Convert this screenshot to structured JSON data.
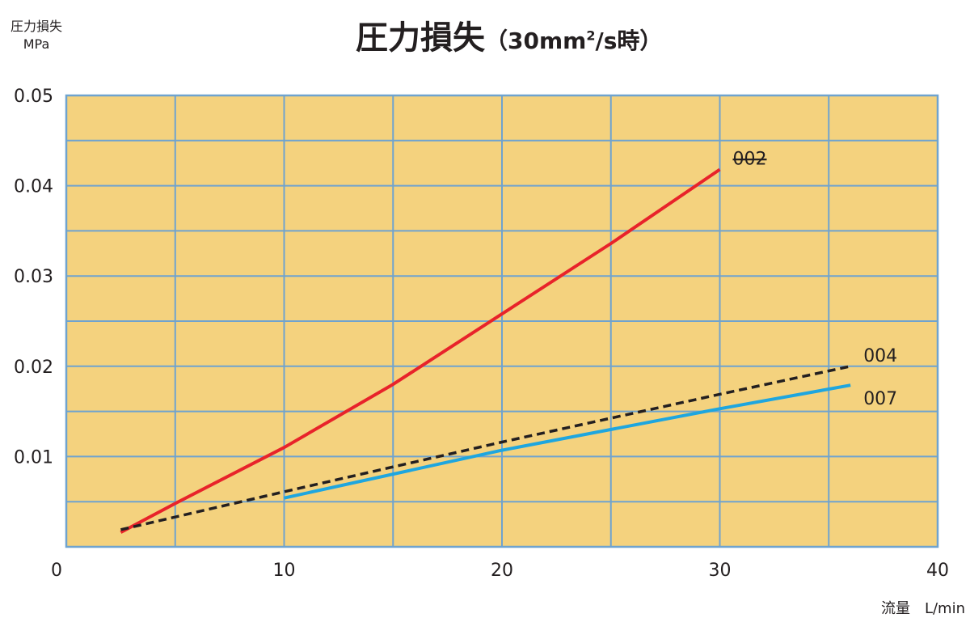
{
  "chart_data": {
    "type": "line",
    "title": "圧力損失",
    "title_condition_prefix": "（30mm",
    "title_condition_sup": "2",
    "title_condition_suffix": "/s時）",
    "ylabel_line1": "圧力損失",
    "ylabel_line2": "MPa",
    "xlabel_name": "流量",
    "xlabel_unit": "L/min",
    "xlim": [
      0,
      40
    ],
    "ylim": [
      0,
      0.05
    ],
    "x_ticks": [
      0,
      10,
      20,
      30,
      40
    ],
    "x_tick_labels": [
      "0",
      "10",
      "20",
      "30",
      "40"
    ],
    "y_ticks": [
      0.01,
      0.02,
      0.03,
      0.04,
      0.05
    ],
    "y_tick_labels": [
      "0.01",
      "0.02",
      "0.03",
      "0.04",
      "0.05"
    ],
    "x_grid_step": 5,
    "y_grid_step": 0.005,
    "grid": true,
    "background_color": "#f4d27e",
    "grid_color": "#6fa3cf",
    "series": [
      {
        "name": "002",
        "color": "#e8232a",
        "dashed": false,
        "points": [
          [
            2.5,
            0.0016
          ],
          [
            5,
            0.0048
          ],
          [
            10,
            0.011
          ],
          [
            15,
            0.018
          ],
          [
            20,
            0.0258
          ],
          [
            25,
            0.0336
          ],
          [
            30,
            0.0418
          ]
        ]
      },
      {
        "name": "004",
        "color": "#231f20",
        "dashed": true,
        "points": [
          [
            2.5,
            0.0019
          ],
          [
            10,
            0.0061
          ],
          [
            20,
            0.0116
          ],
          [
            30,
            0.0169
          ],
          [
            36,
            0.02
          ]
        ]
      },
      {
        "name": "007",
        "color": "#1ea6df",
        "dashed": false,
        "points": [
          [
            10,
            0.0054
          ],
          [
            20,
            0.0107
          ],
          [
            30,
            0.0153
          ],
          [
            36,
            0.0179
          ]
        ]
      }
    ]
  }
}
